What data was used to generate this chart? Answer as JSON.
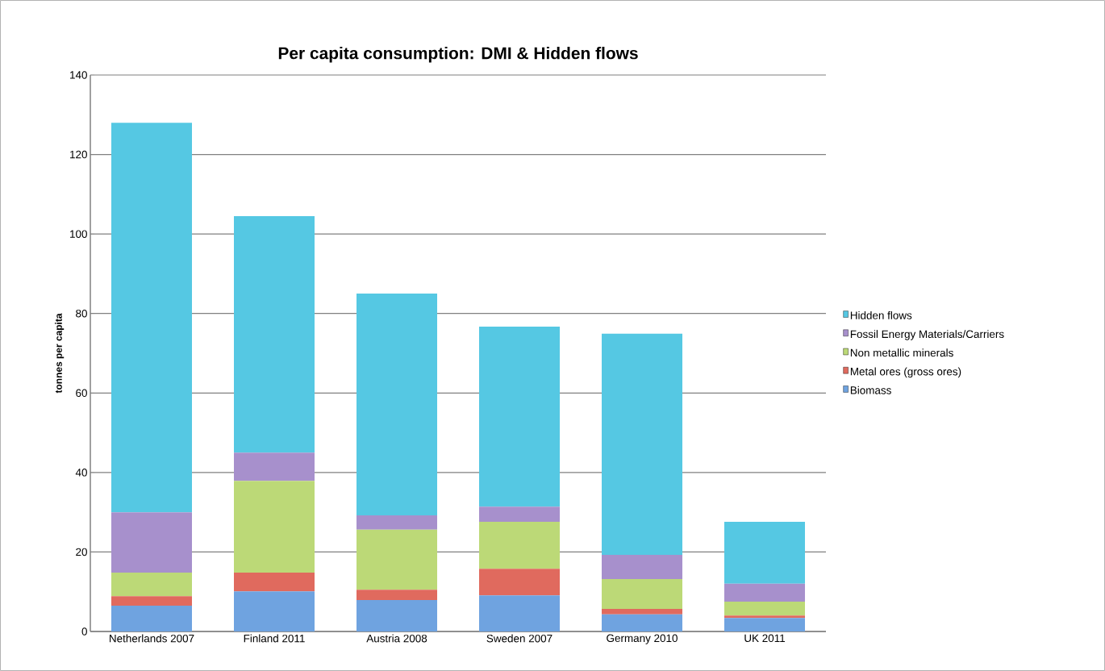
{
  "chart_data": {
    "type": "bar",
    "stacked": true,
    "title": "Per capita consumption: DMI & Hidden flows",
    "ylabel": "tonnes per capita",
    "categories": [
      "Netherlands 2007",
      "Finland 2011",
      "Austria 2008",
      "Sweden 2007",
      "Germany 2010",
      "UK 2011"
    ],
    "series": [
      {
        "name": "Biomass",
        "color": "#6fa3e0",
        "values": [
          6.5,
          10.1,
          7.9,
          9.1,
          4.3,
          3.4
        ]
      },
      {
        "name": "Metal ores (gross ores)",
        "color": "#e06a5e",
        "values": [
          2.4,
          4.7,
          2.6,
          6.7,
          1.4,
          0.6
        ]
      },
      {
        "name": "Non metallic minerals",
        "color": "#bcd977",
        "values": [
          5.9,
          23.1,
          15.1,
          11.8,
          7.5,
          3.5
        ]
      },
      {
        "name": "Fossil Energy Materials/Carriers",
        "color": "#a790cc",
        "values": [
          15.2,
          7.1,
          3.6,
          3.8,
          6.1,
          4.5
        ]
      },
      {
        "name": "Hidden flows",
        "color": "#55c8e3",
        "values": [
          98.0,
          59.5,
          55.8,
          45.3,
          55.6,
          15.6
        ]
      }
    ],
    "ylim": [
      0,
      140
    ],
    "yticks": [
      0,
      20,
      40,
      60,
      80,
      100,
      120,
      140
    ],
    "grid": "y",
    "legend": "right"
  }
}
